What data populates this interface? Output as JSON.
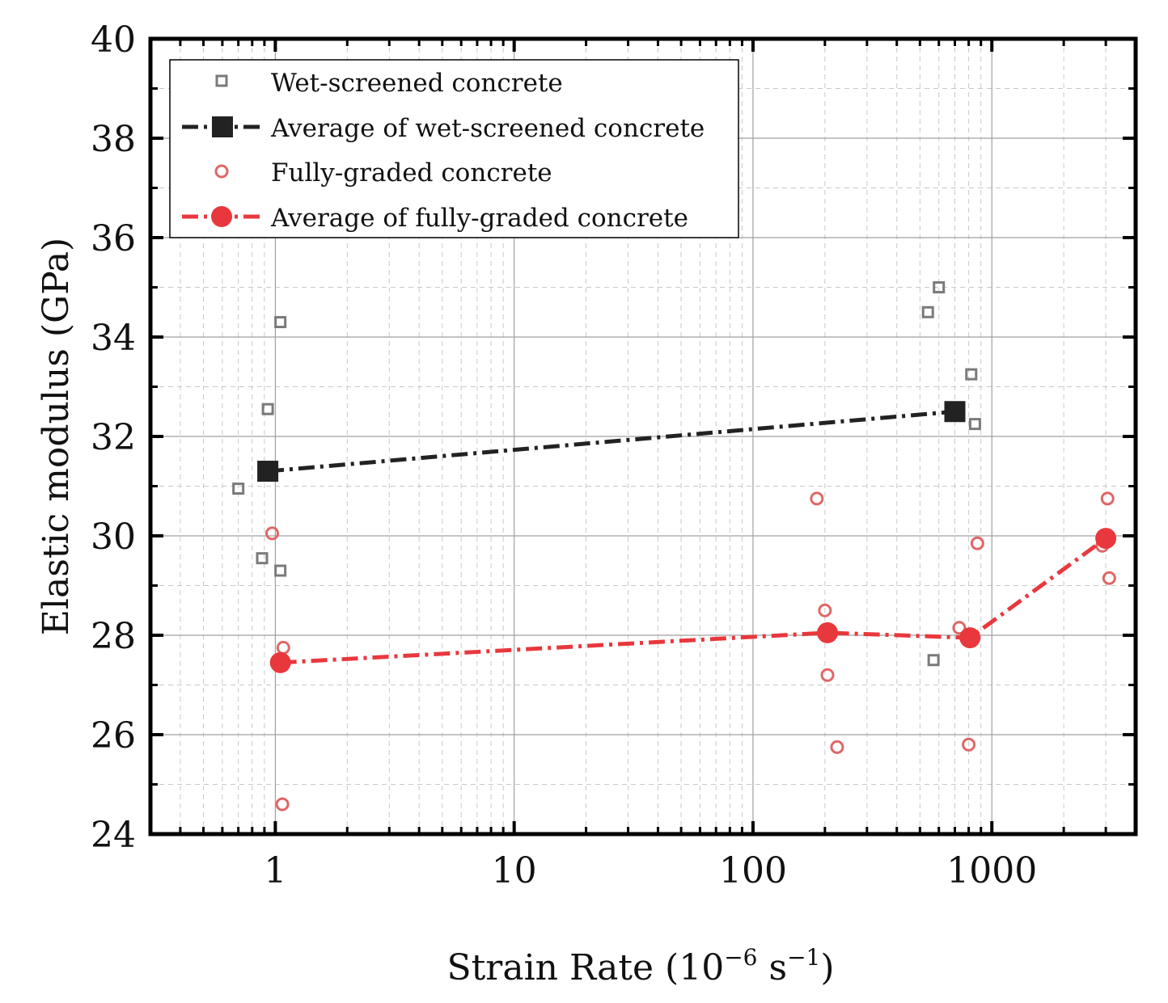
{
  "chart_data": {
    "type": "scatter",
    "xscale": "log",
    "xlim": [
      0.3,
      4000
    ],
    "ylim": [
      24,
      40
    ],
    "x_ticks": [
      1,
      10,
      100,
      1000
    ],
    "x_tick_labels": [
      "1",
      "10",
      "100",
      "1000"
    ],
    "y_ticks": [
      24,
      26,
      28,
      30,
      32,
      34,
      36,
      38,
      40
    ],
    "y_tick_labels": [
      "24",
      "26",
      "28",
      "30",
      "32",
      "34",
      "36",
      "38",
      "40"
    ],
    "xlabel": {
      "main": "Strain Rate (10",
      "sup1": "−6",
      "mid": " s",
      "sup2": "−1",
      "end": ")"
    },
    "ylabel": "Elastic modulus (GPa)",
    "grid": true,
    "legend_position": "top-left",
    "colors": {
      "wet": "#7a7a7a",
      "wet_avg": "#222222",
      "full": "#e06666",
      "full_avg": "#e8383d"
    },
    "series": [
      {
        "name": "Wet-screened concrete",
        "kind": "scatter",
        "marker": "open-square",
        "points": [
          {
            "x": 0.7,
            "y": 30.95
          },
          {
            "x": 0.88,
            "y": 29.55
          },
          {
            "x": 0.93,
            "y": 32.55
          },
          {
            "x": 1.05,
            "y": 34.3
          },
          {
            "x": 1.05,
            "y": 29.3
          },
          {
            "x": 540,
            "y": 34.5
          },
          {
            "x": 600,
            "y": 35.0
          },
          {
            "x": 570,
            "y": 27.5
          },
          {
            "x": 820,
            "y": 33.25
          },
          {
            "x": 850,
            "y": 32.25
          }
        ]
      },
      {
        "name": "Average of wet-screened concrete",
        "kind": "line",
        "marker": "filled-square",
        "points": [
          {
            "x": 0.93,
            "y": 31.3
          },
          {
            "x": 700,
            "y": 32.5
          }
        ]
      },
      {
        "name": "Fully-graded concrete",
        "kind": "scatter",
        "marker": "open-circle",
        "points": [
          {
            "x": 0.97,
            "y": 30.05
          },
          {
            "x": 1.08,
            "y": 27.75
          },
          {
            "x": 1.07,
            "y": 24.6
          },
          {
            "x": 185,
            "y": 30.75
          },
          {
            "x": 200,
            "y": 28.5
          },
          {
            "x": 205,
            "y": 27.2
          },
          {
            "x": 225,
            "y": 25.75
          },
          {
            "x": 730,
            "y": 28.15
          },
          {
            "x": 800,
            "y": 25.8
          },
          {
            "x": 870,
            "y": 29.85
          },
          {
            "x": 2900,
            "y": 29.8
          },
          {
            "x": 3050,
            "y": 30.75
          },
          {
            "x": 3100,
            "y": 29.15
          }
        ]
      },
      {
        "name": "Average of fully-graded concrete",
        "kind": "line",
        "marker": "filled-circle",
        "points": [
          {
            "x": 1.05,
            "y": 27.45
          },
          {
            "x": 205,
            "y": 28.05
          },
          {
            "x": 810,
            "y": 27.95
          },
          {
            "x": 3000,
            "y": 29.95
          }
        ]
      }
    ]
  }
}
